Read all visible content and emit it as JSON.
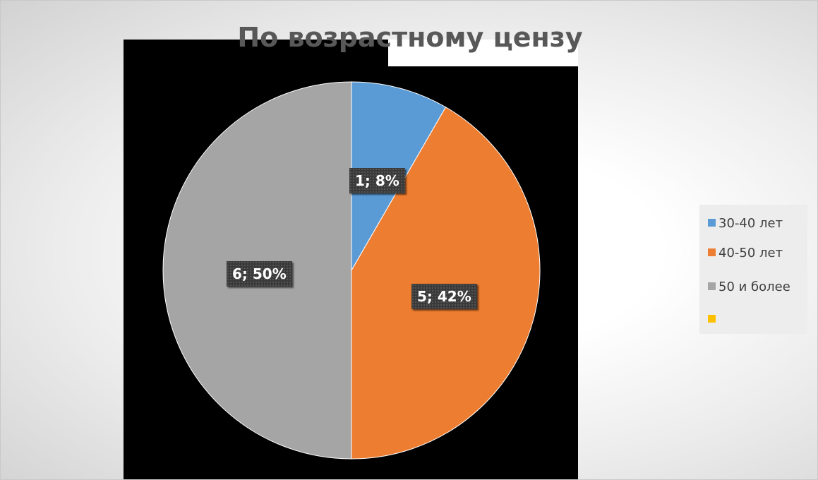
{
  "chart_data": {
    "type": "pie",
    "title": "По возрастному цензу",
    "categories": [
      "30-40 лет",
      "40-50 лет",
      "50 и более",
      ""
    ],
    "values": [
      1,
      5,
      6,
      0
    ],
    "percent_labels": [
      "1; 8%",
      "5; 42%",
      "6; 50%"
    ],
    "colors": [
      "#5b9bd5",
      "#ed7d31",
      "#a5a5a5",
      "#ffc000"
    ],
    "legend_position": "right",
    "start_angle_deg": 0,
    "direction": "clockwise"
  }
}
